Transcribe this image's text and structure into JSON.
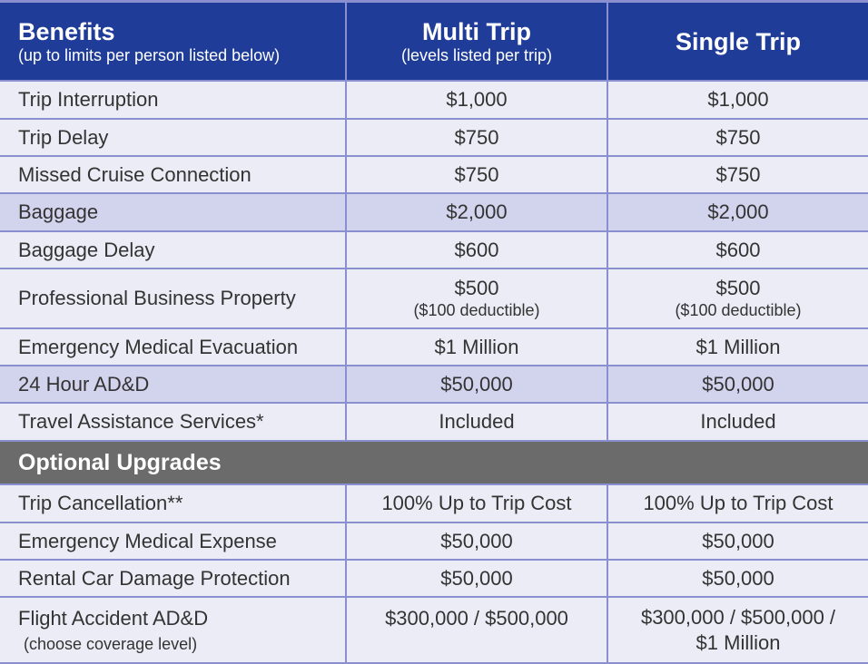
{
  "header": {
    "col1_title": "Benefits",
    "col1_sub": "(up to limits per person listed below)",
    "col2_title": "Multi Trip",
    "col2_sub": "(levels listed per trip)",
    "col3_title": "Single Trip"
  },
  "rows": [
    {
      "benefit": "Trip Interruption",
      "multi": "$1,000",
      "single": "$1,000"
    },
    {
      "benefit": "Trip Delay",
      "multi": "$750",
      "single": "$750"
    },
    {
      "benefit": "Missed Cruise Connection",
      "multi": "$750",
      "single": "$750"
    },
    {
      "benefit": "Baggage",
      "multi": "$2,000",
      "single": "$2,000"
    },
    {
      "benefit": "Baggage Delay",
      "multi": "$600",
      "single": "$600"
    },
    {
      "benefit": "Professional Business Property",
      "multi": "$500",
      "multi_note": "($100 deductible)",
      "single": "$500",
      "single_note": "($100 deductible)"
    },
    {
      "benefit": "Emergency Medical Evacuation",
      "multi": "$1 Million",
      "single": "$1 Million"
    },
    {
      "benefit": "24 Hour AD&D",
      "multi": "$50,000",
      "single": "$50,000"
    },
    {
      "benefit": "Travel Assistance Services*",
      "multi": "Included",
      "single": "Included"
    }
  ],
  "section_title": "Optional Upgrades",
  "upgrades": [
    {
      "benefit": "Trip Cancellation**",
      "multi": "100% Up to Trip Cost",
      "single": "100% Up to Trip Cost"
    },
    {
      "benefit": "Emergency Medical Expense",
      "multi": "$50,000",
      "single": "$50,000"
    },
    {
      "benefit": "Rental Car Damage Protection",
      "multi": "$50,000",
      "single": "$50,000"
    },
    {
      "benefit": "Flight Accident AD&D",
      "benefit_note": "(choose coverage level)",
      "multi": "$300,000 / $500,000",
      "single": "$300,000 / $500,000 /",
      "single_line2": "$1 Million"
    }
  ],
  "colors": {
    "header_bg": "#1f3c99",
    "row_bg": "#ececf6",
    "highlight_bg": "#d2d3ec",
    "section_bg": "#6b6b6b",
    "border": "#8a8fd0"
  }
}
